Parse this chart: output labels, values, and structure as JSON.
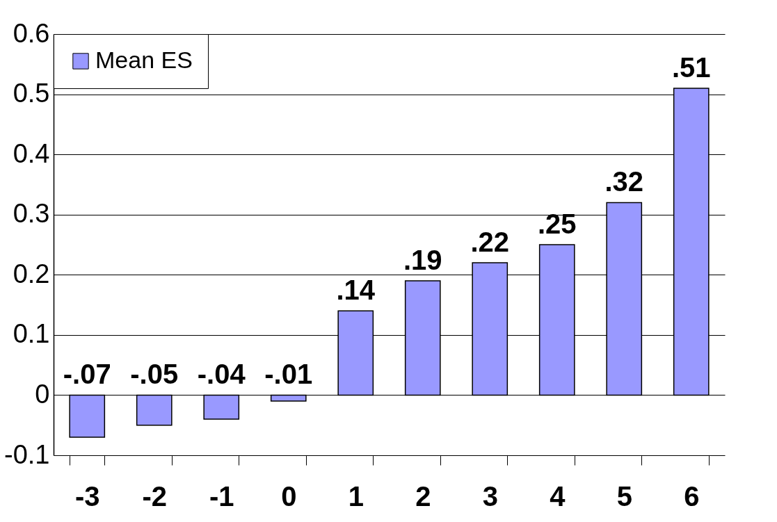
{
  "chart_data": {
    "type": "bar",
    "categories": [
      "-3",
      "-2",
      "-1",
      "0",
      "1",
      "2",
      "3",
      "4",
      "5",
      "6"
    ],
    "series": [
      {
        "name": "Mean ES",
        "color": "#9999ff",
        "values": [
          -0.07,
          -0.05,
          -0.04,
          -0.01,
          0.14,
          0.19,
          0.22,
          0.25,
          0.32,
          0.51
        ],
        "value_labels": [
          "-.07",
          "-.05",
          "-.04",
          "-.01",
          ".14",
          ".19",
          ".22",
          ".25",
          ".32",
          ".51"
        ]
      }
    ],
    "ylim": [
      -0.1,
      0.6
    ],
    "yticks": [
      -0.1,
      0,
      0.1,
      0.2,
      0.3,
      0.4,
      0.5,
      0.6
    ],
    "grid": "y",
    "legend": "top left"
  }
}
